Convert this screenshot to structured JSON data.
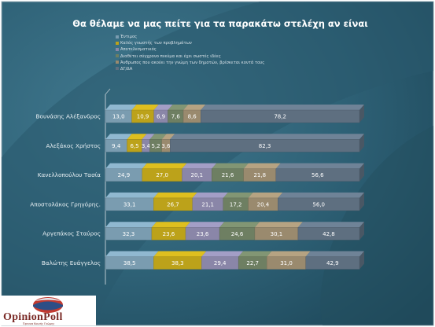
{
  "slide": {
    "title": "Θα θέλαμε να μας πείτε για τα παρακάτω στελέχη αν είναι"
  },
  "colors": {
    "bg_dark": "#1f4a5c",
    "bg_mid": "#3a6e84",
    "bg_arc": "#2c5b6e",
    "series": [
      "#7a9cb0",
      "#bca21a",
      "#8a86a8",
      "#6e7f62",
      "#9a8a6e",
      "#5e6f80"
    ]
  },
  "chart_data": {
    "type": "bar",
    "orientation": "horizontal",
    "stacked": "100%",
    "title": "Θα θέλαμε να μας πείτε για τα παρακάτω στελέχη αν είναι",
    "categories": [
      "Βουνάσης Αλέξανδρος",
      "Αλεξάκος Χρήστος",
      "Κανελλοπούλου Τασία",
      "Αποστολάκος Γρηγόρης",
      "Αργεπάκος Σταύρος",
      "Βαλώτης Ευάγγελος"
    ],
    "series": [
      {
        "name": "Έντιμος",
        "values": [
          13.0,
          9.4,
          24.9,
          33.1,
          32.3,
          38.5
        ],
        "labels": [
          "13,0",
          "9,4",
          "24,9",
          "33,1",
          "32,3",
          "38,5"
        ]
      },
      {
        "name": "Καλός γνωστής των προβλημάτων",
        "values": [
          10.9,
          6.5,
          27.0,
          26.7,
          23.6,
          38.3
        ],
        "labels": [
          "10,9",
          "6,5",
          "27,0",
          "26,7",
          "23,6",
          "38,3"
        ]
      },
      {
        "name": "Αποτελεσματικός",
        "values": [
          6.9,
          3.4,
          20.1,
          21.1,
          23.6,
          29.4
        ],
        "labels": [
          "6,9",
          "3,4",
          "20,1",
          "21,1",
          "23,6",
          "29,4"
        ]
      },
      {
        "name": "Διαθέτει σύγχρονο πνεύμα και έχει σωστές ιδέες",
        "values": [
          7.6,
          5.2,
          21.6,
          17.2,
          24.6,
          22.7
        ],
        "labels": [
          "7,6",
          "5,2",
          "21,6",
          "17,2",
          "24,6",
          "22,7"
        ]
      },
      {
        "name": "Άνθρωπος που ακούει την γνώμη των δημοτών, βρίσκεται κοντά τους",
        "values": [
          8.6,
          3.6,
          21.8,
          20.4,
          30.1,
          31.0
        ],
        "labels": [
          "8,6",
          "3,6",
          "21,8",
          "20,4",
          "30,1",
          "31,0"
        ]
      },
      {
        "name": "ΔΓ/ΔΑ",
        "values": [
          78.2,
          82.3,
          56.6,
          56.0,
          42.8,
          42.9
        ],
        "labels": [
          "78,2",
          "82,3",
          "56,6",
          "56,0",
          "42,8",
          "42,9"
        ]
      }
    ],
    "category_labels": [
      "Βουνάσης Αλέξανδρος",
      "Αλεξάκος Χρήστος",
      "Κανελλοπούλου Τασία",
      "Αποστολάκος Γρηγόρης.",
      "Αργεπάκος Σταύρος",
      "Βαλώτης Ευάγγελος"
    ],
    "legend_position": "top",
    "grid": false,
    "bar_style": "3d"
  },
  "logo": {
    "text": "OpinionPoll",
    "subtext": "Έρευνα Κοινής Γνώμης"
  }
}
